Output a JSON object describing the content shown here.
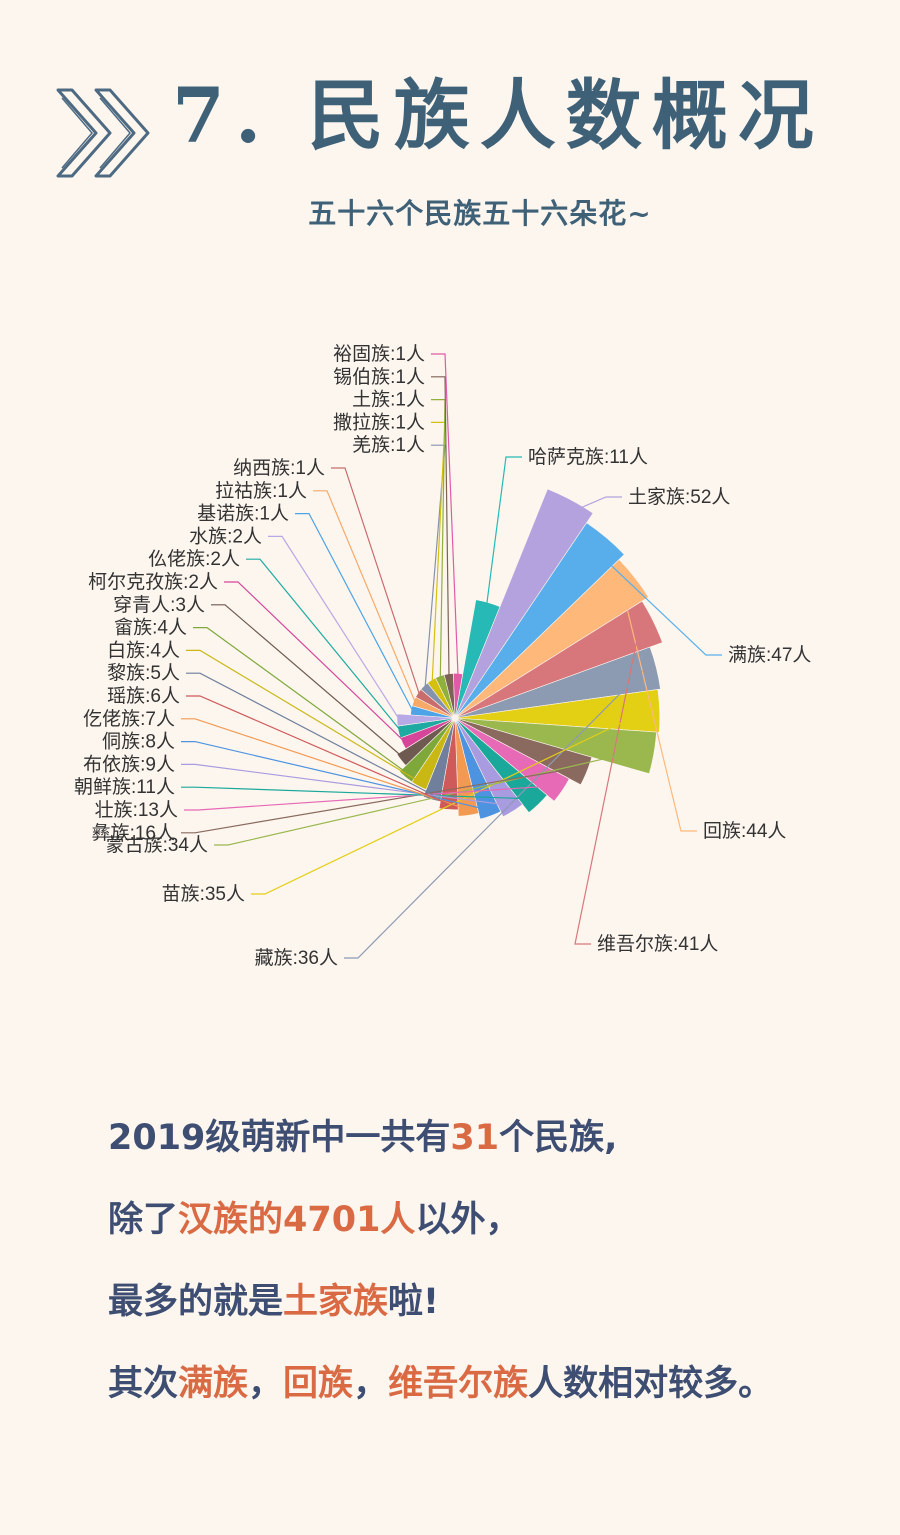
{
  "header": {
    "title": "7. 民族人数概况",
    "subtitle": "五十六个民族五十六朵花~"
  },
  "colors": {
    "title": "#3f6178",
    "summary_text": "#3e4e72",
    "highlight": "#d96a43",
    "background": "#fdf6ef"
  },
  "chart_data": {
    "type": "pie",
    "variant": "nightingale-rose",
    "unit": "人",
    "slices": [
      {
        "label": "哈萨克族:11人",
        "name": "哈萨克族",
        "value": 11,
        "color": "#26b9b5"
      },
      {
        "label": "土家族:52人",
        "name": "土家族",
        "value": 52,
        "color": "#b3a2de"
      },
      {
        "label": "满族:47人",
        "name": "满族",
        "value": 47,
        "color": "#58aeeb"
      },
      {
        "label": "回族:44人",
        "name": "回族",
        "value": 44,
        "color": "#fdb87a"
      },
      {
        "label": "维吾尔族:41人",
        "name": "维吾尔族",
        "value": 41,
        "color": "#d8777b"
      },
      {
        "label": "藏族:36人",
        "name": "藏族",
        "value": 36,
        "color": "#8c9ab2"
      },
      {
        "label": "苗族:35人",
        "name": "苗族",
        "value": 35,
        "color": "#e3cf14"
      },
      {
        "label": "蒙古族:34人",
        "name": "蒙古族",
        "value": 34,
        "color": "#9bb84f"
      },
      {
        "label": "彝族:16人",
        "name": "彝族",
        "value": 16,
        "color": "#8a6a5e"
      },
      {
        "label": "壮族:13人",
        "name": "壮族",
        "value": 13,
        "color": "#e66ab5"
      },
      {
        "label": "朝鲜族:11人",
        "name": "朝鲜族",
        "value": 11,
        "color": "#1aa89a"
      },
      {
        "label": "布依族:9人",
        "name": "布依族",
        "value": 9,
        "color": "#a99be0"
      },
      {
        "label": "侗族:8人",
        "name": "侗族",
        "value": 8,
        "color": "#4d93e0"
      },
      {
        "label": "仡佬族:7人",
        "name": "仡佬族",
        "value": 7,
        "color": "#f29a52"
      },
      {
        "label": "瑶族:6人",
        "name": "瑶族",
        "value": 6,
        "color": "#cf5a5a"
      },
      {
        "label": "黎族:5人",
        "name": "黎族",
        "value": 5,
        "color": "#6f7f9c"
      },
      {
        "label": "白族:4人",
        "name": "白族",
        "value": 4,
        "color": "#c9b814"
      },
      {
        "label": "畲族:4人",
        "name": "畲族",
        "value": 4,
        "color": "#7fa83a"
      },
      {
        "label": "穿青人:3人",
        "name": "穿青人",
        "value": 3,
        "color": "#6e5a50"
      },
      {
        "label": "柯尔克孜族:2人",
        "name": "柯尔克孜族",
        "value": 2,
        "color": "#d6459a"
      },
      {
        "label": "仫佬族:2人",
        "name": "仫佬族",
        "value": 2,
        "color": "#1eaaa0"
      },
      {
        "label": "水族:2人",
        "name": "水族",
        "value": 2,
        "color": "#b7a8e6"
      },
      {
        "label": "基诺族:1人",
        "name": "基诺族",
        "value": 1,
        "color": "#4da3e8"
      },
      {
        "label": "拉祜族:1人",
        "name": "拉祜族",
        "value": 1,
        "color": "#f7a968"
      },
      {
        "label": "纳西族:1人",
        "name": "纳西族",
        "value": 1,
        "color": "#c96c6c"
      },
      {
        "label": "羌族:1人",
        "name": "羌族",
        "value": 1,
        "color": "#8592ad"
      },
      {
        "label": "撒拉族:1人",
        "name": "撒拉族",
        "value": 1,
        "color": "#d4c010"
      },
      {
        "label": "土族:1人",
        "name": "土族",
        "value": 1,
        "color": "#8fb03c"
      },
      {
        "label": "锡伯族:1人",
        "name": "锡伯族",
        "value": 1,
        "color": "#7c6256"
      },
      {
        "label": "裕固族:1人",
        "name": "裕固族",
        "value": 1,
        "color": "#e05aa8"
      }
    ]
  },
  "summary": {
    "line1": {
      "a": "2019级萌新中一共有",
      "b": "31",
      "c": "个民族,"
    },
    "line2": {
      "a": "除了",
      "b": "汉族的4701人",
      "c": "以外，"
    },
    "line3": {
      "a": "最多的就是",
      "b": "土家族",
      "c": "啦!"
    },
    "line4": {
      "a": "其次",
      "b": "满族",
      "c": "，",
      "d": "回族",
      "e": "，",
      "f": "维吾尔族",
      "g": "人数相对较多。"
    }
  }
}
